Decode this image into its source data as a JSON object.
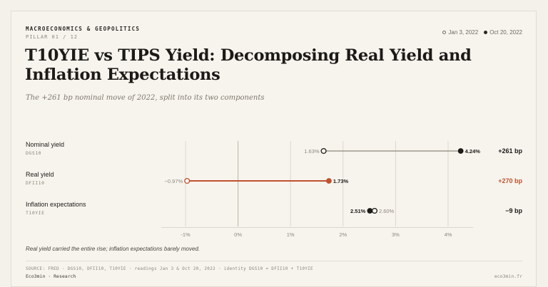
{
  "header": {
    "kicker": "MACROECONOMICS & GEOPOLITICS",
    "pillar": "PILLAR 01 / 12",
    "legend_start": "Jan 3, 2022",
    "legend_end": "Oct 20, 2022",
    "title": "T10YIE vs TIPS Yield: Decomposing Real Yield and Inflation Expectations",
    "subtitle": "The +261 bp nominal move of 2022, split into its two components"
  },
  "footer": {
    "note": "Real yield carried the entire rise; inflation expectations barely moved.",
    "source": "SOURCE: FRED · DGS10, DFII10, T10YIE · readings Jan 3 & Oct 20, 2022 · identity DGS10 = DFII10 + T10YIE",
    "brand": "Eco3min · Research",
    "site": "eco3min.fr"
  },
  "colors": {
    "ink": "#1c1a17",
    "grid": "#dcd7cc",
    "zero": "#b9b3a7",
    "nominal_line": "#8d877c",
    "accent": "#c0512f",
    "muted": "#8d877c"
  },
  "chart_data": {
    "type": "dumbbell",
    "x_unit": "%",
    "xlim": [
      -1.4,
      4.45
    ],
    "x_ticks": [
      -1,
      0,
      1,
      2,
      3,
      4
    ],
    "x_tick_labels": [
      "-1%",
      "0%",
      "1%",
      "2%",
      "3%",
      "4%"
    ],
    "series_start_label": "Jan 3, 2022",
    "series_end_label": "Oct 20, 2022",
    "rows": [
      {
        "label": "Nominal yield",
        "code": "DGS10",
        "start": 1.63,
        "end": 4.24,
        "start_label": "1.63%",
        "end_label": "4.24%",
        "change_label": "+261 bp",
        "highlight": false
      },
      {
        "label": "Real yield",
        "code": "DFII10",
        "start": -0.97,
        "end": 1.73,
        "start_label": "−0.97%",
        "end_label": "1.73%",
        "change_label": "+270 bp",
        "highlight": true
      },
      {
        "label": "Inflation expectations",
        "code": "T10YIE",
        "start": 2.6,
        "end": 2.51,
        "start_label": "2.60%",
        "end_label": "2.51%",
        "change_label": "−9 bp",
        "highlight": false
      }
    ]
  }
}
